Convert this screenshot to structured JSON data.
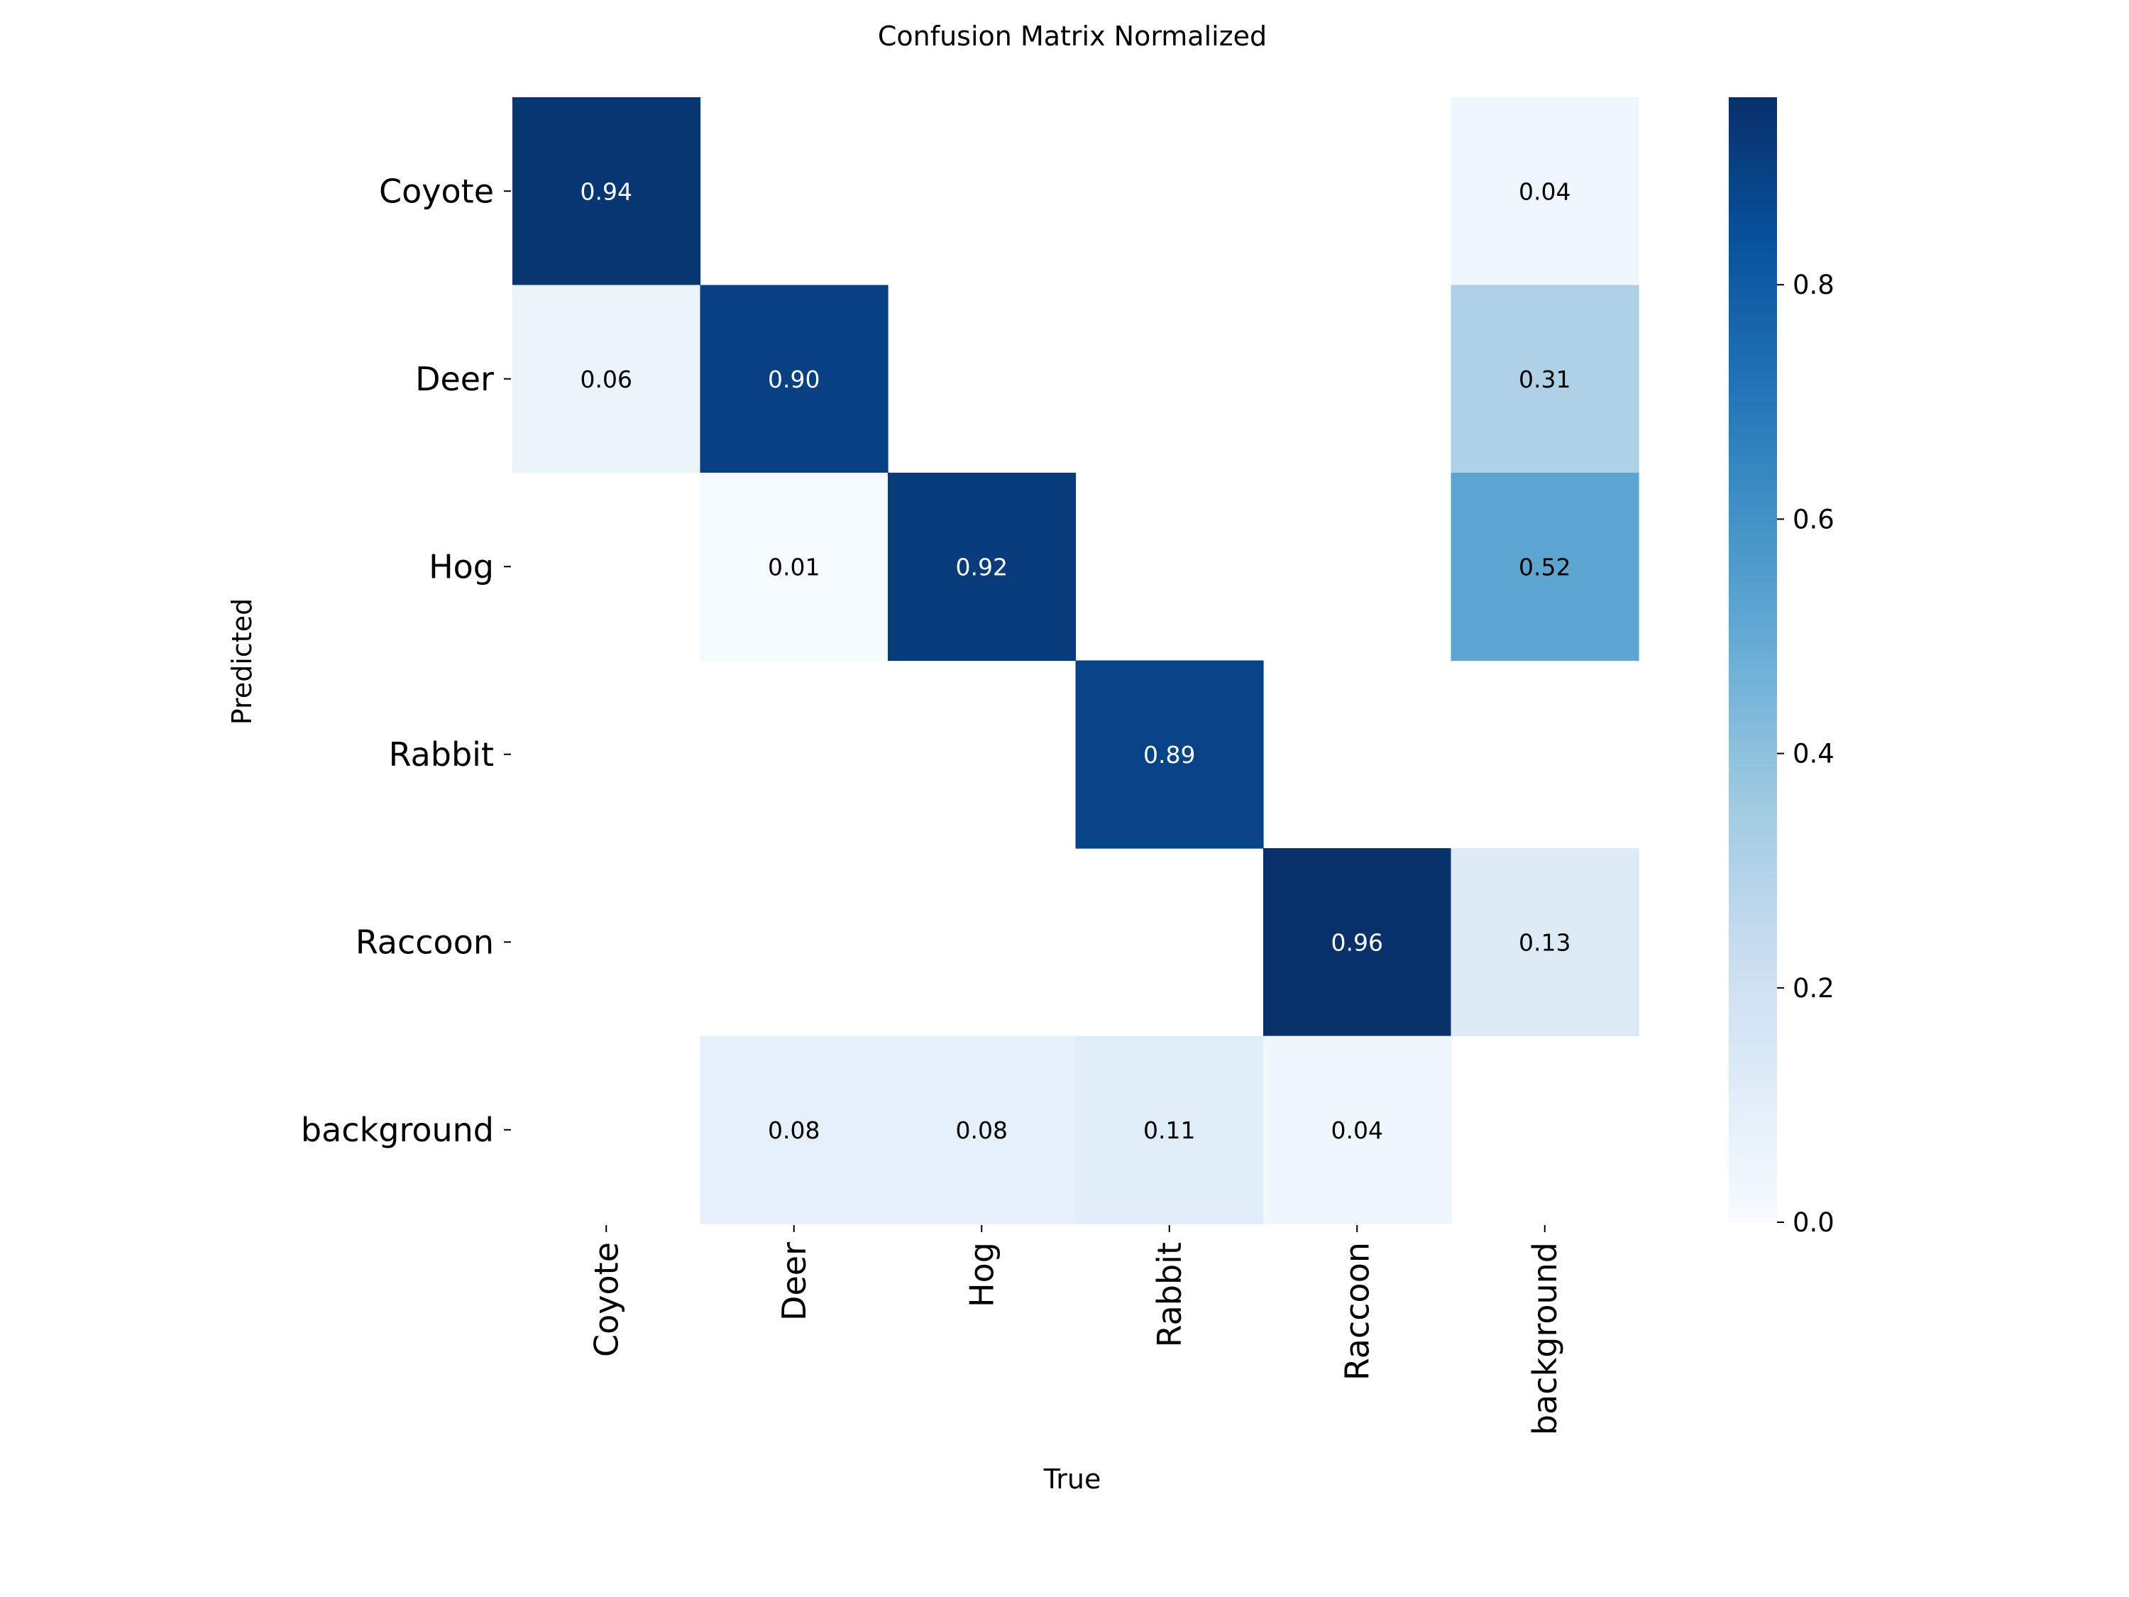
{
  "chart_data": {
    "type": "heatmap",
    "title": "Confusion Matrix Normalized",
    "xlabel": "True",
    "ylabel": "Predicted",
    "x_categories": [
      "Coyote",
      "Deer",
      "Hog",
      "Rabbit",
      "Raccoon",
      "background"
    ],
    "y_categories": [
      "Coyote",
      "Deer",
      "Hog",
      "Rabbit",
      "Raccoon",
      "background"
    ],
    "values": [
      [
        0.94,
        null,
        null,
        null,
        null,
        0.04
      ],
      [
        0.06,
        0.9,
        null,
        null,
        null,
        0.31
      ],
      [
        null,
        0.01,
        0.92,
        null,
        null,
        0.52
      ],
      [
        null,
        null,
        null,
        0.89,
        null,
        null
      ],
      [
        null,
        null,
        null,
        null,
        0.96,
        0.13
      ],
      [
        null,
        0.08,
        0.08,
        0.11,
        0.04,
        null
      ]
    ],
    "colormap": "Blues",
    "colorbar": {
      "range": [
        0.0,
        0.96
      ],
      "ticks": [
        0.0,
        0.2,
        0.4,
        0.6,
        0.8
      ],
      "tick_labels": [
        "0.0",
        "0.2",
        "0.4",
        "0.6",
        "0.8"
      ]
    }
  }
}
